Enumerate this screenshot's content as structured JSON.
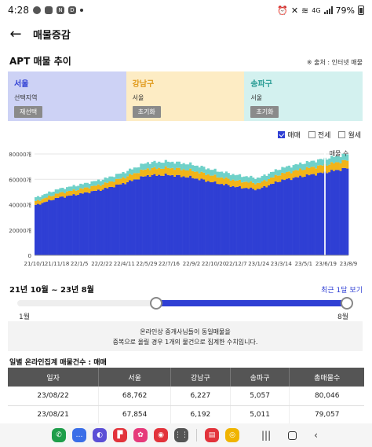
{
  "status_bar": {
    "time": "4:28",
    "battery": "79%",
    "signal": "4G"
  },
  "header": {
    "back_icon": "arrow-left-icon",
    "title": "매물증감"
  },
  "section": {
    "title": "APT 매물 추이",
    "source": "※ 출처 : 인터넷 매물"
  },
  "regions": [
    {
      "title": "서울",
      "subtitle": "선택지역",
      "button": "재선택",
      "bg": "#cdd2f5",
      "title_color": "#2f3fd4"
    },
    {
      "title": "강남구",
      "subtitle": "서울",
      "button": "초기화",
      "bg": "#fdecc4",
      "title_color": "#e09a1a"
    },
    {
      "title": "송파구",
      "subtitle": "서울",
      "button": "초기화",
      "bg": "#d3f1ef",
      "title_color": "#2a9d95"
    }
  ],
  "legend": [
    {
      "label": "매매",
      "checked": true
    },
    {
      "label": "전세",
      "checked": false
    },
    {
      "label": "월세",
      "checked": false
    }
  ],
  "chart_data": {
    "type": "bar",
    "stacked": true,
    "x_tick_labels": [
      "21/10/1",
      "21/11/18",
      "22/1/5",
      "22/2/22",
      "22/4/11",
      "22/5/29",
      "22/7/16",
      "22/9/2",
      "22/10/20",
      "22/12/7",
      "23/1/24",
      "23/3/14",
      "23/5/1",
      "23/6/19",
      "23/8/9"
    ],
    "y_tick_labels": [
      "0",
      "20000개",
      "40000개",
      "60000개",
      "80000개"
    ],
    "ylim": [
      0,
      80000
    ],
    "series_colors": {
      "seoul": "#2f3fd4",
      "gangnam": "#f2b418",
      "songpa": "#6fd1c9"
    },
    "series": [
      {
        "key": "seoul",
        "values": [
          39500,
          45500,
          48500,
          52000,
          57000,
          63000,
          63500,
          61500,
          57500,
          54000,
          52000,
          59000,
          62500,
          65500,
          68800
        ]
      },
      {
        "key": "gangnam",
        "values": [
          3000,
          3400,
          3800,
          4100,
          4600,
          5400,
          5600,
          5500,
          5200,
          5000,
          4700,
          5200,
          5600,
          5900,
          6200
        ]
      },
      {
        "key": "songpa",
        "values": [
          3000,
          3300,
          3500,
          3800,
          4100,
          4800,
          4900,
          4800,
          4600,
          4400,
          4200,
          4500,
          4700,
          4900,
          5050
        ]
      }
    ],
    "annotation": "매물 수"
  },
  "range": {
    "label": "21년 10월 ~ 23년 8월",
    "link": "최근 1달 보기",
    "min_label": "1월",
    "max_label": "8월",
    "start_fraction": 0.41,
    "end_fraction": 1.0
  },
  "notice": {
    "line1": "온라인상 중개사님들이 동일매물을",
    "line2": "중복으로 올릴 경우 1개의 물건으로 집계한 수치입니다."
  },
  "table": {
    "title": "일별 온라인집계 매물건수 : 매매",
    "headers": [
      "일자",
      "서울",
      "강남구",
      "송파구",
      "총매물수"
    ],
    "rows": [
      [
        "23/08/22",
        "68,762",
        "6,227",
        "5,057",
        "80,046"
      ],
      [
        "23/08/21",
        "67,854",
        "6,192",
        "5,011",
        "79,057"
      ]
    ]
  },
  "nav_apps": [
    {
      "name": "phone-app-icon",
      "color": "#1e9e4a",
      "glyph": "✆"
    },
    {
      "name": "messages-app-icon",
      "color": "#3a6ee8",
      "glyph": "…"
    },
    {
      "name": "internet-app-icon",
      "color": "#5b4fd6",
      "glyph": "◐"
    },
    {
      "name": "flipboard-app-icon",
      "color": "#e2333b",
      "glyph": "▛"
    },
    {
      "name": "blossom-app-icon",
      "color": "#e63a7a",
      "glyph": "✿"
    },
    {
      "name": "camera-app-icon",
      "color": "#e2333b",
      "glyph": "◉"
    },
    {
      "name": "apps-grid-icon",
      "color": "#555555",
      "glyph": "⋮⋮"
    },
    {
      "name": "book-app-icon",
      "color": "#e2333b",
      "glyph": "▤"
    },
    {
      "name": "chrome-app-icon",
      "color": "#f0b400",
      "glyph": "◎"
    }
  ]
}
